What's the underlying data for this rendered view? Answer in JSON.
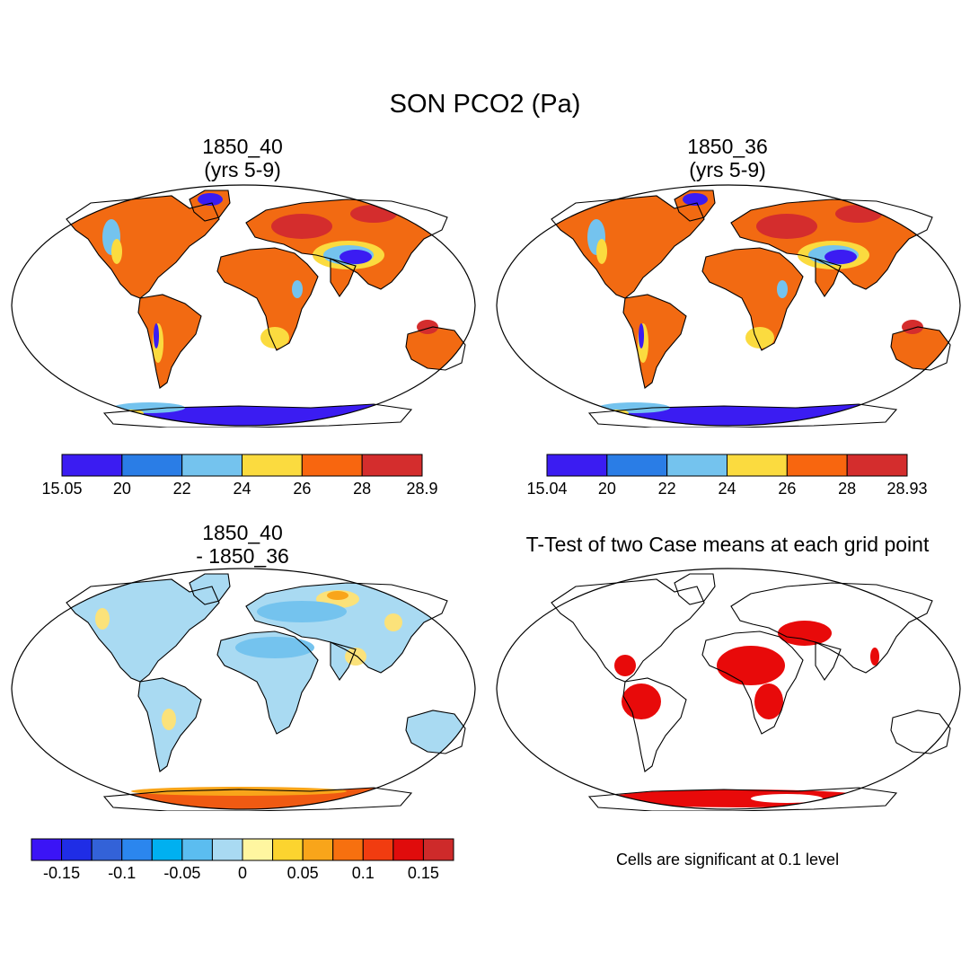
{
  "title": "SON PCO2 (Pa)",
  "panels": [
    {
      "id": "case1",
      "title_line1": "1850_40",
      "title_line2": "(yrs 5-9)"
    },
    {
      "id": "case2",
      "title_line1": "1850_36",
      "title_line2": "(yrs 5-9)"
    },
    {
      "id": "diff",
      "title_line1": "1850_40",
      "title_line2": "- 1850_36"
    },
    {
      "id": "ttest",
      "title_line1": "T-Test of two Case means at each grid point"
    }
  ],
  "colorbars": [
    {
      "id": "cb1",
      "colors": [
        "#3b1cf2",
        "#2a7de6",
        "#74c3ee",
        "#fbdb3f",
        "#f8660f",
        "#d42d2d"
      ],
      "labels": [
        "15.05",
        "20",
        "22",
        "24",
        "26",
        "28",
        "28.9"
      ]
    },
    {
      "id": "cb2",
      "colors": [
        "#3b1cf2",
        "#2a7de6",
        "#74c3ee",
        "#fbdb3f",
        "#f8660f",
        "#d42d2d"
      ],
      "labels": [
        "15.04",
        "20",
        "22",
        "24",
        "26",
        "28",
        "28.93"
      ]
    },
    {
      "id": "cb3",
      "colors": [
        "#3b14f6",
        "#1f2de6",
        "#3362d8",
        "#2b86ee",
        "#00b0f0",
        "#5bbdf0",
        "#a9daf2",
        "#fff6a0",
        "#fcd42f",
        "#f9a51a",
        "#f7700f",
        "#f13c10",
        "#e00c0c",
        "#ce2a2a"
      ],
      "labels": [
        "-0.15",
        "-0.1",
        "-0.05",
        "0",
        "0.05",
        "0.1",
        "0.15"
      ]
    }
  ],
  "significance_note": "Cells are significant at 0.1 level",
  "colors": {
    "land_case": "#f26a12",
    "land_high": "#d42d2d",
    "land_mid": "#fbdb3f",
    "land_low": "#74c3ee",
    "land_lowest": "#3b1cf2",
    "diff_main": "#a9daf2",
    "diff_neg": "#74c3ee",
    "diff_pos": "#fbe27a",
    "antarctic_pos": "#f05a12",
    "sig": "#e80a0a"
  }
}
